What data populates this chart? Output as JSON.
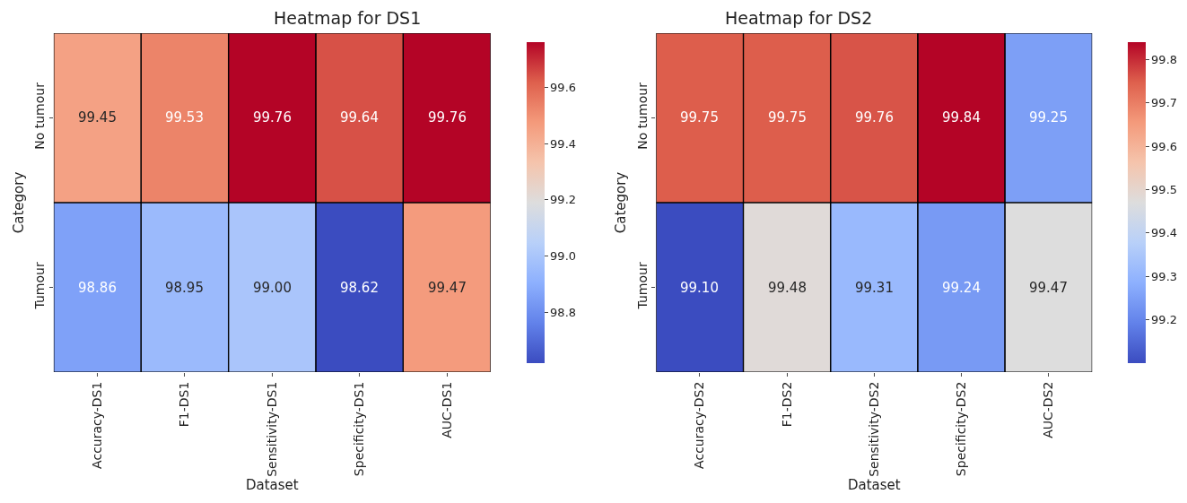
{
  "chart_data": [
    {
      "type": "heatmap",
      "title": "Heatmap for DS1",
      "xlabel": "Dataset",
      "ylabel": "Category",
      "categories": [
        "Accuracy-DS1",
        "F1-DS1",
        "Sensitivity-DS1",
        "Specificity-DS1",
        "AUC-DS1"
      ],
      "y_categories": [
        "No tumour",
        "Tumour"
      ],
      "cells": [
        [
          99.45,
          99.53,
          99.76,
          99.64,
          99.76
        ],
        [
          98.86,
          98.95,
          99.0,
          98.62,
          99.47
        ]
      ],
      "cell_labels": [
        [
          "99.45",
          "99.53",
          "99.76",
          "99.64",
          "99.76"
        ],
        [
          "98.86",
          "98.95",
          "99.00",
          "98.62",
          "99.47"
        ]
      ],
      "clim": [
        98.62,
        99.76
      ],
      "cticks": [
        98.8,
        {
          "value": 99.0,
          "label": "99.0"
        },
        99.2,
        99.4,
        99.6
      ]
    },
    {
      "type": "heatmap",
      "title": "Heatmap for DS2",
      "xlabel": "Dataset",
      "ylabel": "Category",
      "categories": [
        "Accuracy-DS2",
        "F1-DS2",
        "Sensitivity-DS2",
        "Specificity-DS2",
        "AUC-DS2"
      ],
      "y_categories": [
        "No tumour",
        "Tumour"
      ],
      "cells": [
        [
          99.75,
          99.75,
          99.76,
          99.84,
          99.25
        ],
        [
          99.1,
          99.48,
          99.31,
          99.24,
          99.47
        ]
      ],
      "cell_labels": [
        [
          "99.75",
          "99.75",
          "99.76",
          "99.84",
          "99.25"
        ],
        [
          "99.10",
          "99.48",
          "99.31",
          "99.24",
          "99.47"
        ]
      ],
      "clim": [
        99.1,
        99.84
      ],
      "cticks": [
        99.2,
        99.3,
        99.4,
        99.5,
        99.6,
        99.7,
        99.8
      ]
    }
  ]
}
